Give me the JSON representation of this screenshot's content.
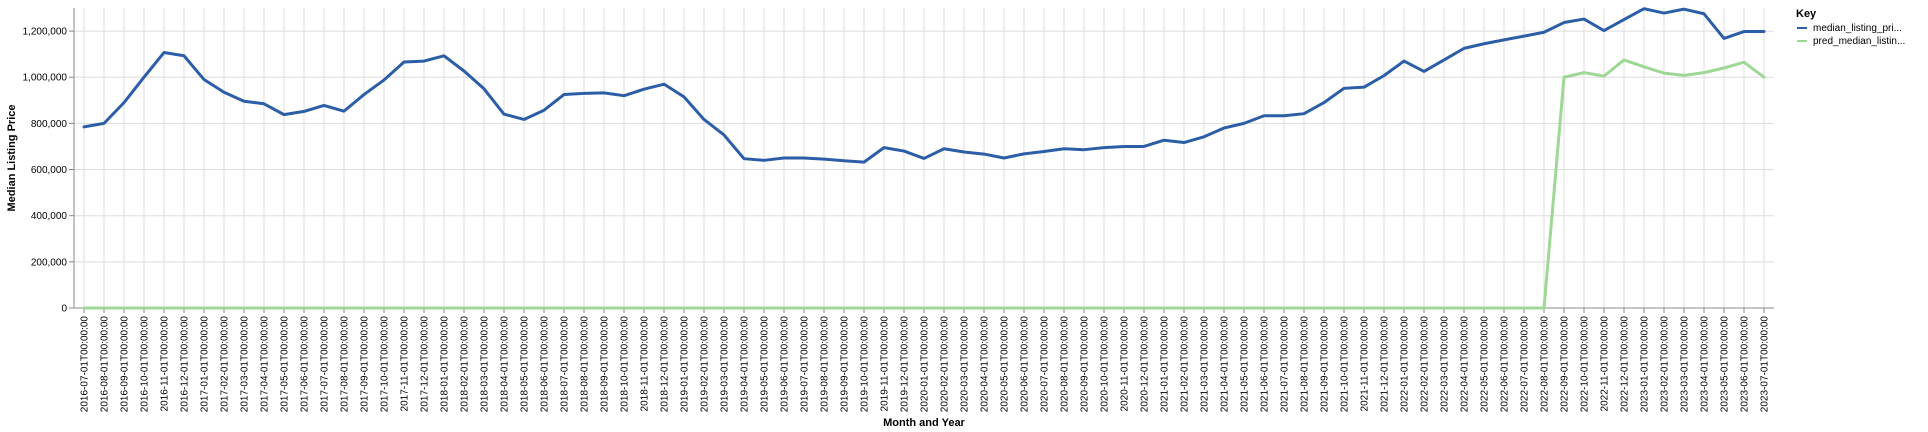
{
  "chart_data": {
    "type": "line",
    "xlabel": "Month and Year",
    "ylabel": "Median Listing Price",
    "ylim": [
      0,
      1300000
    ],
    "yticks": [
      0,
      200000,
      400000,
      600000,
      800000,
      1000000,
      1200000
    ],
    "ytick_labels": [
      "0",
      "200,000",
      "400,000",
      "600,000",
      "800,000",
      "1,000,000",
      "1,200,000"
    ],
    "grid": true,
    "legend": {
      "title": "Key",
      "placement": "top-right"
    },
    "x": [
      "2016-07-01T00:00:00",
      "2016-08-01T00:00:00",
      "2016-09-01T00:00:00",
      "2016-10-01T00:00:00",
      "2016-11-01T00:00:00",
      "2016-12-01T00:00:00",
      "2017-01-01T00:00:00",
      "2017-02-01T00:00:00",
      "2017-03-01T00:00:00",
      "2017-04-01T00:00:00",
      "2017-05-01T00:00:00",
      "2017-06-01T00:00:00",
      "2017-07-01T00:00:00",
      "2017-08-01T00:00:00",
      "2017-09-01T00:00:00",
      "2017-10-01T00:00:00",
      "2017-11-01T00:00:00",
      "2017-12-01T00:00:00",
      "2018-01-01T00:00:00",
      "2018-02-01T00:00:00",
      "2018-03-01T00:00:00",
      "2018-04-01T00:00:00",
      "2018-05-01T00:00:00",
      "2018-06-01T00:00:00",
      "2018-07-01T00:00:00",
      "2018-08-01T00:00:00",
      "2018-09-01T00:00:00",
      "2018-10-01T00:00:00",
      "2018-11-01T00:00:00",
      "2018-12-01T00:00:00",
      "2019-01-01T00:00:00",
      "2019-02-01T00:00:00",
      "2019-03-01T00:00:00",
      "2019-04-01T00:00:00",
      "2019-05-01T00:00:00",
      "2019-06-01T00:00:00",
      "2019-07-01T00:00:00",
      "2019-08-01T00:00:00",
      "2019-09-01T00:00:00",
      "2019-10-01T00:00:00",
      "2019-11-01T00:00:00",
      "2019-12-01T00:00:00",
      "2020-01-01T00:00:00",
      "2020-02-01T00:00:00",
      "2020-03-01T00:00:00",
      "2020-04-01T00:00:00",
      "2020-05-01T00:00:00",
      "2020-06-01T00:00:00",
      "2020-07-01T00:00:00",
      "2020-08-01T00:00:00",
      "2020-09-01T00:00:00",
      "2020-10-01T00:00:00",
      "2020-11-01T00:00:00",
      "2020-12-01T00:00:00",
      "2021-01-01T00:00:00",
      "2021-02-01T00:00:00",
      "2021-03-01T00:00:00",
      "2021-04-01T00:00:00",
      "2021-05-01T00:00:00",
      "2021-06-01T00:00:00",
      "2021-07-01T00:00:00",
      "2021-08-01T00:00:00",
      "2021-09-01T00:00:00",
      "2021-10-01T00:00:00",
      "2021-11-01T00:00:00",
      "2021-12-01T00:00:00",
      "2022-01-01T00:00:00",
      "2022-02-01T00:00:00",
      "2022-03-01T00:00:00",
      "2022-04-01T00:00:00",
      "2022-05-01T00:00:00",
      "2022-06-01T00:00:00",
      "2022-07-01T00:00:00",
      "2022-08-01T00:00:00",
      "2022-09-01T00:00:00",
      "2022-10-01T00:00:00",
      "2022-11-01T00:00:00",
      "2022-12-01T00:00:00",
      "2023-01-01T00:00:00",
      "2023-02-01T00:00:00",
      "2023-03-01T00:00:00",
      "2023-04-01T00:00:00",
      "2023-05-01T00:00:00",
      "2023-06-01T00:00:00",
      "2023-07-01T00:00:00"
    ],
    "series": [
      {
        "name": "median_listing_pri...",
        "color": "#2c5ea8",
        "values": [
          785000,
          800000,
          890000,
          1000000,
          1107000,
          1093000,
          990000,
          935000,
          896000,
          885000,
          838000,
          852000,
          878000,
          853000,
          925000,
          988000,
          1066000,
          1070000,
          1093000,
          1027000,
          950000,
          840000,
          817000,
          857000,
          925000,
          930000,
          932000,
          920000,
          948000,
          970000,
          915000,
          817000,
          750000,
          647000,
          640000,
          650000,
          650000,
          645000,
          638000,
          632000,
          695000,
          680000,
          648000,
          690000,
          676000,
          667000,
          650000,
          668000,
          678000,
          690000,
          686000,
          695000,
          700000,
          700000,
          727000,
          717000,
          742000,
          780000,
          800000,
          833000,
          833000,
          842000,
          890000,
          952000,
          957000,
          1007000,
          1070000,
          1025000,
          1075000,
          1125000,
          1145000,
          1162000,
          1178000,
          1195000,
          1237000,
          1252000,
          1202000,
          1250000,
          1297000,
          1278000,
          1295000,
          1275000,
          1168000,
          1198000,
          1198000
        ]
      },
      {
        "name": "pred_median_listin...",
        "color": "#9fd896",
        "values": [
          0,
          0,
          0,
          0,
          0,
          0,
          0,
          0,
          0,
          0,
          0,
          0,
          0,
          0,
          0,
          0,
          0,
          0,
          0,
          0,
          0,
          0,
          0,
          0,
          0,
          0,
          0,
          0,
          0,
          0,
          0,
          0,
          0,
          0,
          0,
          0,
          0,
          0,
          0,
          0,
          0,
          0,
          0,
          0,
          0,
          0,
          0,
          0,
          0,
          0,
          0,
          0,
          0,
          0,
          0,
          0,
          0,
          0,
          0,
          0,
          0,
          0,
          0,
          0,
          0,
          0,
          0,
          0,
          0,
          0,
          0,
          0,
          0,
          0,
          1000000,
          1020000,
          1005000,
          1075000,
          1045000,
          1018000,
          1008000,
          1020000,
          1040000,
          1065000,
          1000000
        ]
      }
    ]
  }
}
